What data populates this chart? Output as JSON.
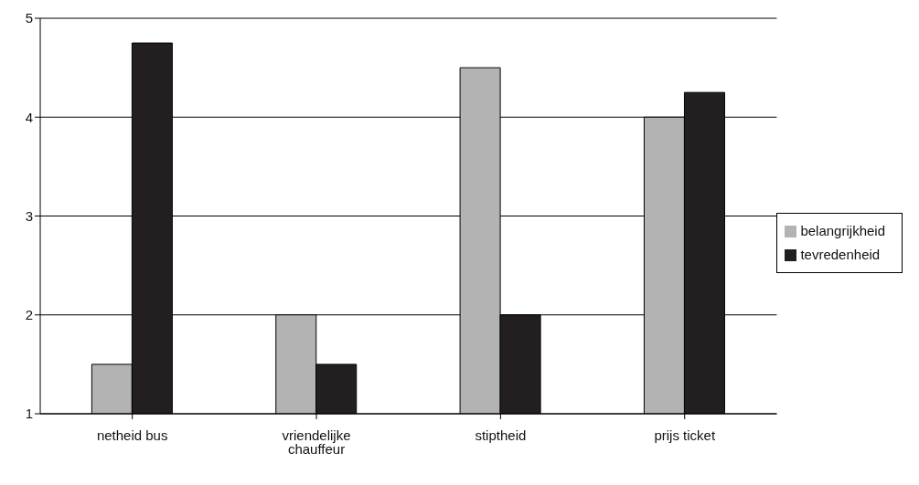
{
  "chart_data": {
    "type": "bar",
    "categories": [
      "netheid bus",
      "vriendelijke chauffeur",
      "stiptheid",
      "prijs ticket"
    ],
    "series": [
      {
        "name": "belangrijkheid",
        "color": "#b3b3b3",
        "values": [
          1.5,
          2,
          4.5,
          4
        ]
      },
      {
        "name": "tevredenheid",
        "color": "#231f20",
        "values": [
          4.75,
          1.5,
          2,
          4.25
        ]
      }
    ],
    "ylim": [
      1,
      5
    ],
    "yticks": [
      1,
      2,
      3,
      4,
      5
    ],
    "grid": "y",
    "legend": "right"
  }
}
